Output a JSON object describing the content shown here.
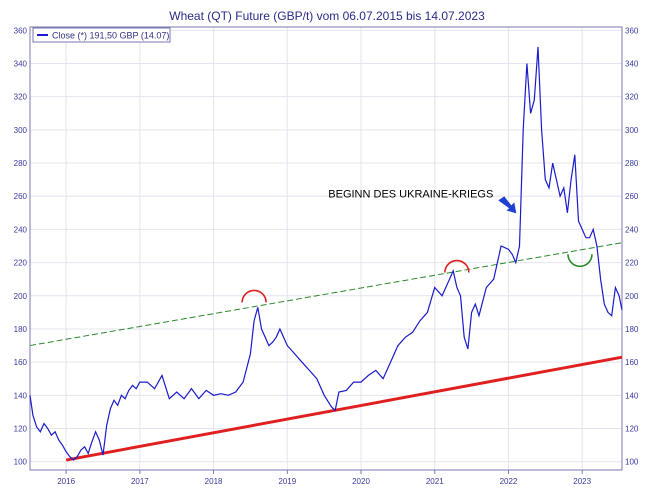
{
  "chart_data": {
    "type": "line",
    "title": "Wheat (QT) Future (GBP/t) vom 06.07.2015 bis 14.07.2023",
    "legend": "Close (*) 191,50 GBP (14.07)",
    "legend_position": "top-left",
    "xlabel": "",
    "ylabel": "",
    "xlim": [
      2015.51,
      2023.54
    ],
    "ylim": [
      95,
      362
    ],
    "grid": true,
    "x_ticks": [
      {
        "value": 2016.0,
        "label": "2016"
      },
      {
        "value": 2017.0,
        "label": "2017"
      },
      {
        "value": 2018.0,
        "label": "2018"
      },
      {
        "value": 2019.0,
        "label": "2019"
      },
      {
        "value": 2020.0,
        "label": "2020"
      },
      {
        "value": 2021.0,
        "label": "2021"
      },
      {
        "value": 2022.0,
        "label": "2022"
      },
      {
        "value": 2023.0,
        "label": "2023"
      }
    ],
    "y_ticks": [
      100,
      120,
      140,
      160,
      180,
      200,
      220,
      240,
      260,
      280,
      300,
      320,
      340,
      360
    ],
    "series": [
      {
        "name": "Close (*) 191,50 GBP (14.07)",
        "color": "#1a1acc",
        "x": [
          2015.51,
          2015.55,
          2015.6,
          2015.65,
          2015.7,
          2015.75,
          2015.8,
          2015.85,
          2015.9,
          2015.95,
          2016.0,
          2016.05,
          2016.1,
          2016.15,
          2016.2,
          2016.25,
          2016.3,
          2016.35,
          2016.4,
          2016.45,
          2016.5,
          2016.55,
          2016.6,
          2016.65,
          2016.7,
          2016.75,
          2016.8,
          2016.85,
          2016.9,
          2016.95,
          2017.0,
          2017.1,
          2017.2,
          2017.3,
          2017.4,
          2017.5,
          2017.6,
          2017.7,
          2017.8,
          2017.9,
          2018.0,
          2018.1,
          2018.2,
          2018.3,
          2018.4,
          2018.5,
          2018.55,
          2018.6,
          2018.65,
          2018.7,
          2018.75,
          2018.8,
          2018.85,
          2018.9,
          2018.95,
          2019.0,
          2019.1,
          2019.2,
          2019.3,
          2019.4,
          2019.5,
          2019.6,
          2019.65,
          2019.7,
          2019.8,
          2019.9,
          2020.0,
          2020.1,
          2020.2,
          2020.3,
          2020.4,
          2020.5,
          2020.6,
          2020.7,
          2020.8,
          2020.9,
          2021.0,
          2021.1,
          2021.2,
          2021.25,
          2021.3,
          2021.35,
          2021.4,
          2021.45,
          2021.5,
          2021.55,
          2021.6,
          2021.7,
          2021.8,
          2021.9,
          2022.0,
          2022.05,
          2022.1,
          2022.15,
          2022.2,
          2022.25,
          2022.3,
          2022.35,
          2022.4,
          2022.45,
          2022.5,
          2022.55,
          2022.6,
          2022.65,
          2022.7,
          2022.75,
          2022.8,
          2022.85,
          2022.9,
          2022.95,
          2023.0,
          2023.05,
          2023.1,
          2023.15,
          2023.2,
          2023.25,
          2023.3,
          2023.35,
          2023.4,
          2023.45,
          2023.5,
          2023.54
        ],
        "values": [
          140,
          128,
          121,
          118,
          123,
          120,
          116,
          118,
          113,
          110,
          106,
          103,
          101,
          103,
          107,
          109,
          105,
          112,
          118,
          113,
          104,
          122,
          132,
          137,
          134,
          140,
          138,
          143,
          146,
          144,
          148,
          148,
          144,
          152,
          138,
          142,
          138,
          144,
          138,
          143,
          140,
          141,
          140,
          142,
          148,
          165,
          185,
          193,
          180,
          175,
          170,
          172,
          175,
          180,
          175,
          170,
          165,
          160,
          155,
          150,
          140,
          133,
          131,
          142,
          143,
          148,
          148,
          152,
          155,
          150,
          160,
          170,
          175,
          178,
          185,
          190,
          205,
          200,
          210,
          215,
          205,
          200,
          175,
          168,
          190,
          195,
          188,
          205,
          210,
          230,
          228,
          225,
          220,
          230,
          300,
          340,
          310,
          318,
          350,
          300,
          270,
          265,
          280,
          270,
          260,
          265,
          250,
          270,
          285,
          245,
          240,
          235,
          235,
          240,
          230,
          210,
          195,
          190,
          188,
          205,
          200,
          191.5
        ]
      }
    ],
    "support_line": {
      "color": "#e02020",
      "x": [
        2016.0,
        2023.54
      ],
      "y": [
        101,
        163
      ]
    },
    "resistance_line": {
      "color": "#2a8a2a",
      "style": "dashed",
      "x": [
        2015.51,
        2023.54
      ],
      "y": [
        170,
        232
      ]
    },
    "arcs": [
      {
        "color": "#e02020",
        "x": 2018.55,
        "y": 196,
        "type": "cap"
      },
      {
        "color": "#e02020",
        "x": 2021.3,
        "y": 214,
        "type": "cap"
      },
      {
        "color": "#2a8a2a",
        "x": 2022.97,
        "y": 225,
        "type": "cup"
      }
    ],
    "annotation": {
      "text": "BEGINN DES UKRAINE-KRIEGS",
      "x": 2022.12,
      "y": 243
    }
  }
}
